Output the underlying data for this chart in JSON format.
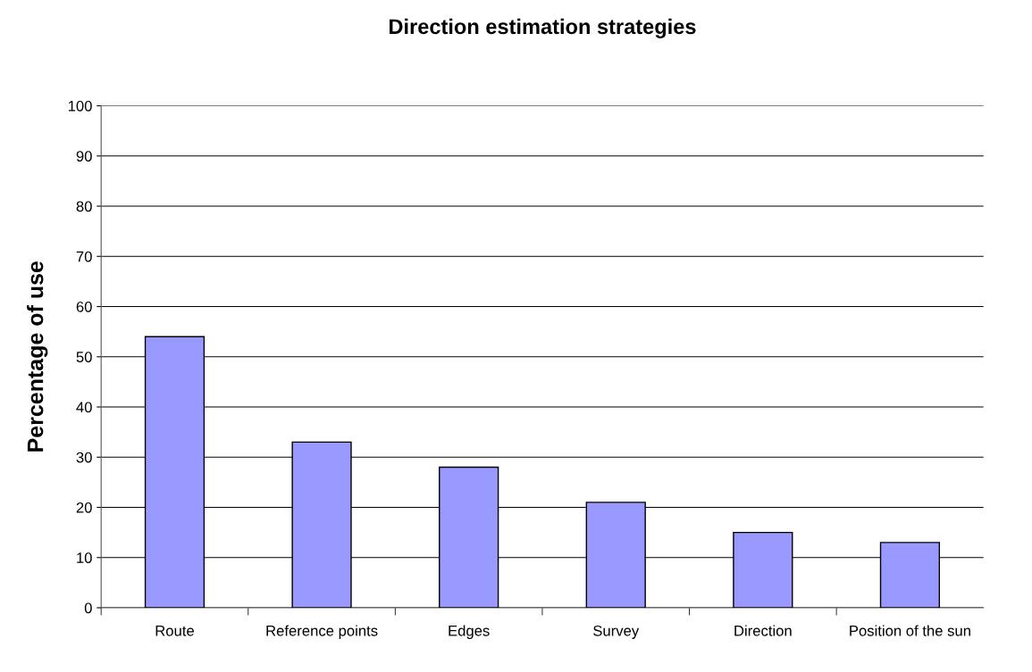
{
  "chart_data": {
    "type": "bar",
    "title": "Direction estimation strategies",
    "ylabel": "Percentage of use",
    "categories": [
      "Route",
      "Reference points",
      "Edges",
      "Survey",
      "Direction",
      "Position of the sun"
    ],
    "values": [
      54,
      33,
      28,
      21,
      15,
      13
    ],
    "color": "#9999ff",
    "ylim": [
      0,
      100
    ],
    "yticks": [
      0,
      10,
      20,
      30,
      40,
      50,
      60,
      70,
      80,
      90,
      100
    ],
    "grid": "y",
    "legend": false
  }
}
